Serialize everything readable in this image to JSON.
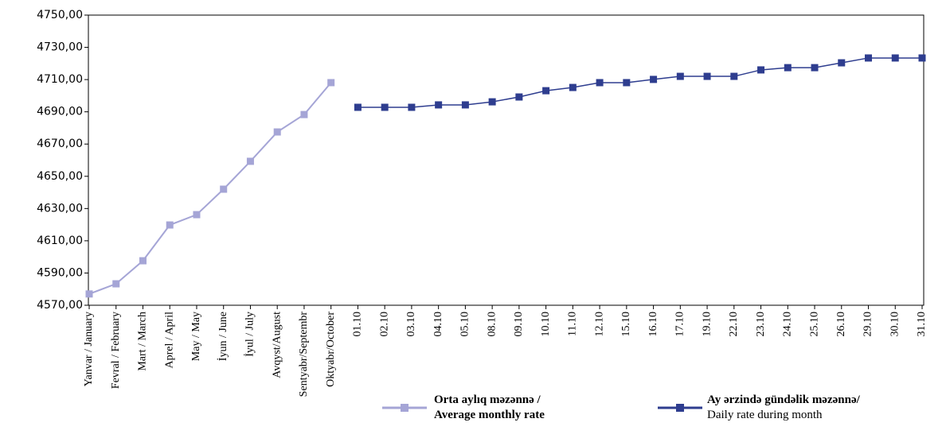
{
  "chart_data": {
    "type": "line",
    "categories": [
      "Yanvar / January",
      "Fevral / February",
      "Mart / March",
      "Aprel / April",
      "May / May",
      "İyun / June",
      "İyul / July",
      "Avqyst/August",
      "Sentyabr/Septembr",
      "Oktyabr/October",
      "01.10",
      "02.10",
      "03.10",
      "04.10",
      "05.10",
      "08.10",
      "09.10",
      "10.10",
      "11.10",
      "12.10",
      "15.10",
      "16.10",
      "17.10",
      "19.10",
      "22.10",
      "23.10",
      "24.10",
      "25.10",
      "26.10",
      "29.10",
      "30.10",
      "31.10"
    ],
    "series": [
      {
        "name": "Orta aylıq məzənnə /\nAverage monthly rate",
        "color": "#a5a5d6",
        "values": [
          4577,
          4583.3,
          4597.6,
          4619.8,
          4626.2,
          4642,
          4659.3,
          4677.5,
          4688.3,
          4708.1,
          null,
          null,
          null,
          null,
          null,
          null,
          null,
          null,
          null,
          null,
          null,
          null,
          null,
          null,
          null,
          null,
          null,
          null,
          null,
          null,
          null,
          null
        ]
      },
      {
        "name": "Ay ərzində gündəlik məzənnə/\nDaily rate during month",
        "color": "#2e3d8f",
        "values": [
          null,
          null,
          null,
          null,
          null,
          null,
          null,
          null,
          null,
          null,
          4692.8,
          4692.8,
          4692.8,
          4694.3,
          4694.3,
          4696.2,
          4699.2,
          4703.1,
          4705.1,
          4708.1,
          4708.1,
          4710.1,
          4712,
          4712,
          4712,
          4716,
          4717.4,
          4717.4,
          4720.4,
          4723.4,
          4723.4,
          4723.4
        ]
      }
    ],
    "ylim": [
      4570,
      4750
    ],
    "yticks": [
      {
        "value": 4570,
        "label": "4570,00"
      },
      {
        "value": 4590,
        "label": "4590,00"
      },
      {
        "value": 4610,
        "label": "4610,00"
      },
      {
        "value": 4630,
        "label": "4630,00"
      },
      {
        "value": 4650,
        "label": "4650,00"
      },
      {
        "value": 4670,
        "label": "4670,00"
      },
      {
        "value": 4690,
        "label": "4690,00"
      },
      {
        "value": 4710,
        "label": "4710,00"
      },
      {
        "value": 4730,
        "label": "4730,00"
      },
      {
        "value": 4750,
        "label": "4750,00"
      }
    ],
    "grid": false
  }
}
